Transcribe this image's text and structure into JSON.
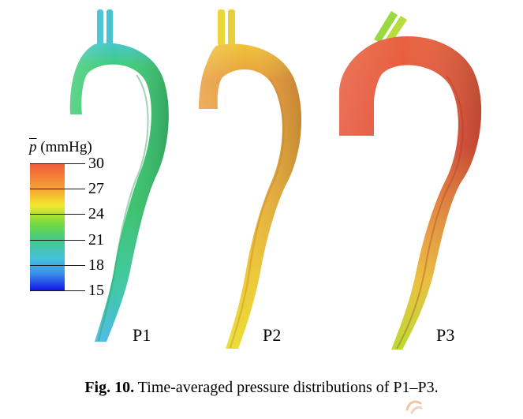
{
  "legend": {
    "symbol": "p",
    "unit": "(mmHg)",
    "ticks": [
      "30",
      "27",
      "24",
      "21",
      "18",
      "15"
    ],
    "colormap": [
      "#f05a3b",
      "#f6a334",
      "#f2e82c",
      "#74da3e",
      "#40c988",
      "#46c2d8",
      "#3b92ea",
      "#1010e6"
    ]
  },
  "panels": [
    {
      "label": "P1",
      "dominant_color": "#3fcc78",
      "descending_color": "#3fc9a2",
      "tip_color": "#45bfe2"
    },
    {
      "label": "P2",
      "dominant_color": "#e7a33a",
      "descending_color": "#edc23a",
      "tip_color": "#ecd932"
    },
    {
      "label": "P3",
      "dominant_color": "#e95a3d",
      "descending_color": "#eb8f3c",
      "tip_color": "#c7df36"
    }
  ],
  "caption": {
    "label": "Fig. 10.",
    "text": " Time-averaged pressure distributions of P1–P3."
  }
}
